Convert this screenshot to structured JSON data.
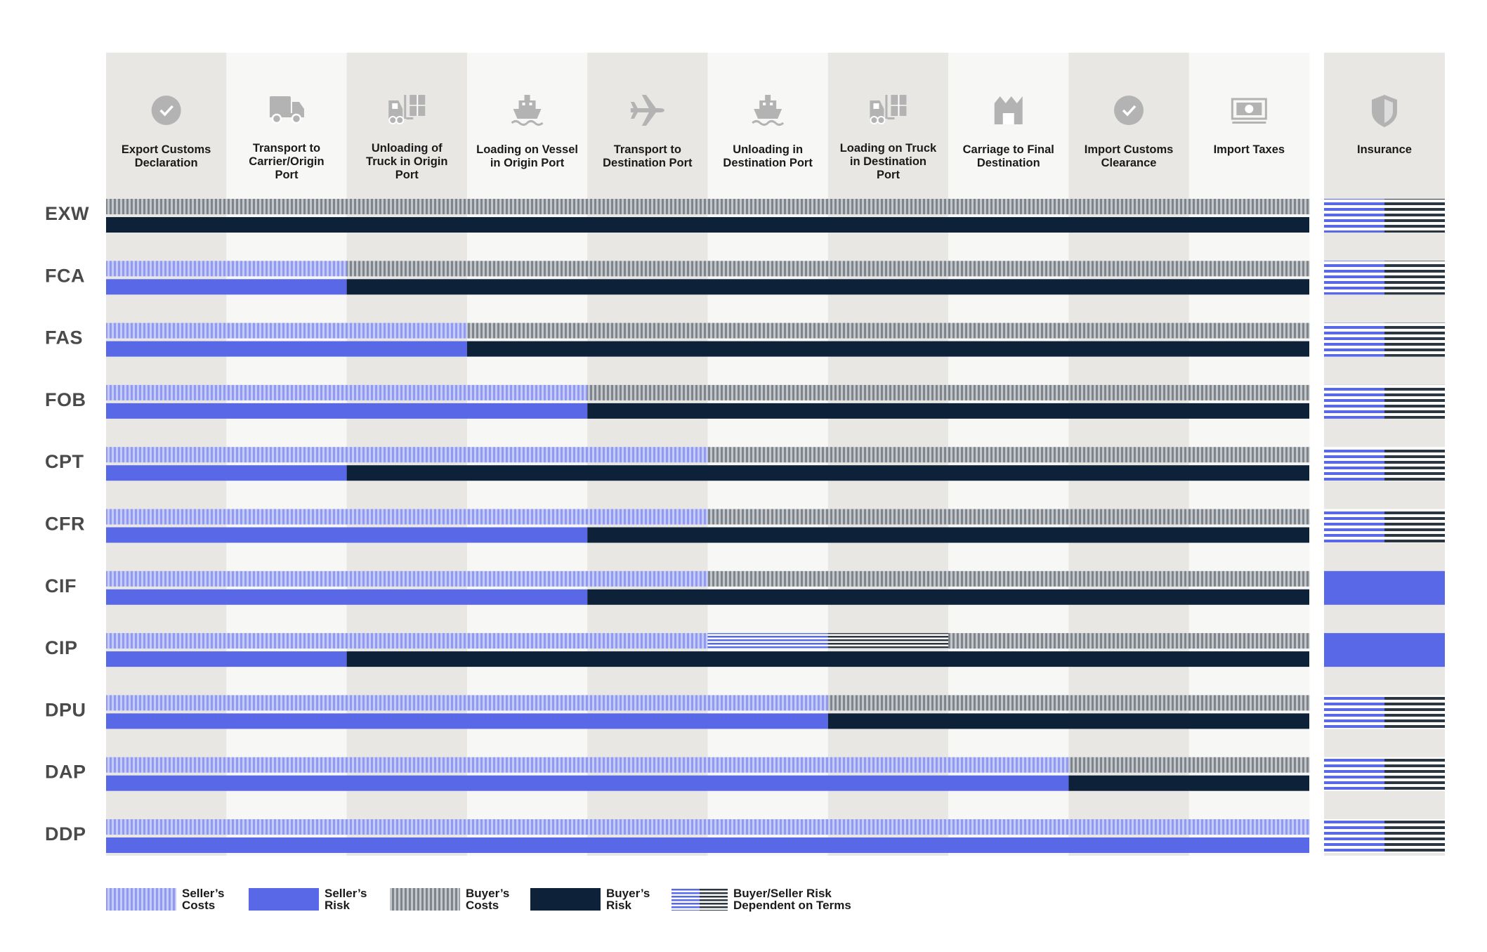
{
  "chart_data": {
    "type": "table",
    "title": "",
    "colors": {
      "seller_costs": "#aab3f2",
      "seller_risk": "#5968e6",
      "buyer_costs": "#a1a6ab",
      "buyer_risk": "#0d2239",
      "col_bg_dark": "#e8e7e4",
      "col_bg_light": "#f7f7f6",
      "icon": "#b3b3b3",
      "label_text": "#4a4a4a"
    },
    "columns": [
      {
        "label": "Export Customs\nDeclaration",
        "icon": "check-circle-icon"
      },
      {
        "label": "Transport to\nCarrier/Origin\nPort",
        "icon": "truck-icon"
      },
      {
        "label": "Unloading of\nTruck in Origin\nPort",
        "icon": "forklift-icon"
      },
      {
        "label": "Loading on Vessel\nin Origin Port",
        "icon": "ship-icon"
      },
      {
        "label": "Transport to\nDestination Port",
        "icon": "airplane-icon"
      },
      {
        "label": "Unloading in\nDestination Port",
        "icon": "ship-icon"
      },
      {
        "label": "Loading on Truck\nin Destination\nPort",
        "icon": "forklift-icon"
      },
      {
        "label": "Carriage to Final\nDestination",
        "icon": "warehouse-icon"
      },
      {
        "label": "Import Customs\nClearance",
        "icon": "check-circle-icon"
      },
      {
        "label": "Import Taxes",
        "icon": "money-icon"
      }
    ],
    "insurance_column": {
      "label": "Insurance",
      "icon": "shield-icon"
    },
    "rows": [
      {
        "term": "EXW",
        "costs": [
          "B",
          "B",
          "B",
          "B",
          "B",
          "B",
          "B",
          "B",
          "B",
          "B"
        ],
        "risk_seller_columns": 0,
        "insurance": "D"
      },
      {
        "term": "FCA",
        "costs": [
          "S",
          "S",
          "B",
          "B",
          "B",
          "B",
          "B",
          "B",
          "B",
          "B"
        ],
        "risk_seller_columns": 2,
        "insurance": "D"
      },
      {
        "term": "FAS",
        "costs": [
          "S",
          "S",
          "S",
          "B",
          "B",
          "B",
          "B",
          "B",
          "B",
          "B"
        ],
        "risk_seller_columns": 3,
        "insurance": "D"
      },
      {
        "term": "FOB",
        "costs": [
          "S",
          "S",
          "S",
          "S",
          "B",
          "B",
          "B",
          "B",
          "B",
          "B"
        ],
        "risk_seller_columns": 4,
        "insurance": "D"
      },
      {
        "term": "CPT",
        "costs": [
          "S",
          "S",
          "S",
          "S",
          "S",
          "B",
          "B",
          "B",
          "B",
          "B"
        ],
        "risk_seller_columns": 2,
        "insurance": "D"
      },
      {
        "term": "CFR",
        "costs": [
          "S",
          "S",
          "S",
          "S",
          "S",
          "B",
          "B",
          "B",
          "B",
          "B"
        ],
        "risk_seller_columns": 4,
        "insurance": "D"
      },
      {
        "term": "CIF",
        "costs": [
          "S",
          "S",
          "S",
          "S",
          "S",
          "B",
          "B",
          "B",
          "B",
          "B"
        ],
        "risk_seller_columns": 4,
        "insurance": "S"
      },
      {
        "term": "CIP",
        "costs": [
          "S",
          "S",
          "S",
          "S",
          "S",
          "D",
          "D",
          "B",
          "B",
          "B"
        ],
        "risk_seller_columns": 2,
        "insurance": "S"
      },
      {
        "term": "DPU",
        "costs": [
          "S",
          "S",
          "S",
          "S",
          "S",
          "S",
          "B",
          "B",
          "B",
          "B"
        ],
        "risk_seller_columns": 6,
        "insurance": "D"
      },
      {
        "term": "DAP",
        "costs": [
          "S",
          "S",
          "S",
          "S",
          "S",
          "S",
          "S",
          "S",
          "B",
          "B"
        ],
        "risk_seller_columns": 8,
        "insurance": "D"
      },
      {
        "term": "DDP",
        "costs": [
          "S",
          "S",
          "S",
          "S",
          "S",
          "S",
          "S",
          "S",
          "S",
          "S"
        ],
        "risk_seller_columns": 10,
        "insurance": "D"
      }
    ],
    "legend": [
      {
        "key": "S",
        "label": "Seller’s\nCosts"
      },
      {
        "key": "SR",
        "label": "Seller’s\nRisk"
      },
      {
        "key": "B",
        "label": "Buyer’s\nCosts"
      },
      {
        "key": "BR",
        "label": "Buyer’s\nRisk"
      },
      {
        "key": "D",
        "label": "Buyer/Seller Risk\nDependent on Terms"
      }
    ]
  }
}
